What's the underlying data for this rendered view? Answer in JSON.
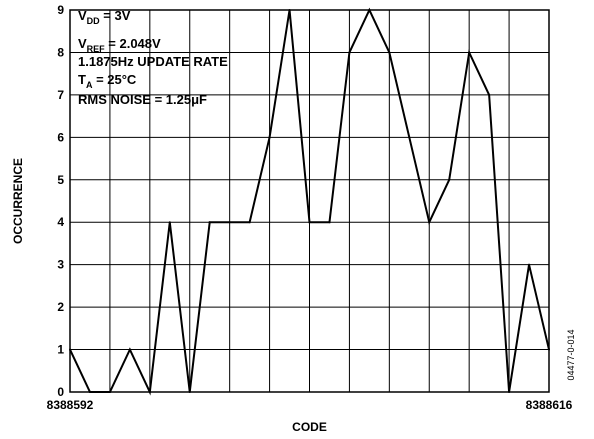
{
  "chart_data": {
    "type": "line",
    "xlabel": "CODE",
    "ylabel": "OCCURRENCE",
    "xlim": [
      8388592,
      8388616
    ],
    "ylim": [
      0,
      9
    ],
    "y_ticks": [
      "0",
      "1",
      "2",
      "3",
      "4",
      "5",
      "6",
      "7",
      "8",
      "9"
    ],
    "x_tick_labels": [
      "8388592",
      "8388616"
    ],
    "grid": true,
    "x": [
      8388592,
      8388593,
      8388594,
      8388595,
      8388596,
      8388597,
      8388598,
      8388599,
      8388600,
      8388601,
      8388602,
      8388603,
      8388604,
      8388605,
      8388606,
      8388607,
      8388608,
      8388609,
      8388610,
      8388611,
      8388612,
      8388613,
      8388614,
      8388615,
      8388616
    ],
    "series": [
      {
        "values": [
          1,
          0,
          0,
          1,
          0,
          4,
          0,
          4,
          4,
          4,
          6,
          9,
          4,
          4,
          8,
          9,
          8,
          6,
          4,
          5,
          8,
          7,
          0,
          3,
          1
        ]
      }
    ],
    "annotations": [
      {
        "main": "V",
        "sub": "DD",
        "rest": " = 3V"
      },
      {
        "main": "V",
        "sub": "REF",
        "rest": " = 2.048V"
      },
      {
        "main": "1.1875Hz UPDATE RATE",
        "sub": "",
        "rest": ""
      },
      {
        "main": "T",
        "sub": "A",
        "rest": " = 25°C"
      },
      {
        "main": "RMS NOISE = 1.25",
        "sub": "",
        "rest": "μF"
      }
    ],
    "figure_id": "04477-0-014"
  }
}
